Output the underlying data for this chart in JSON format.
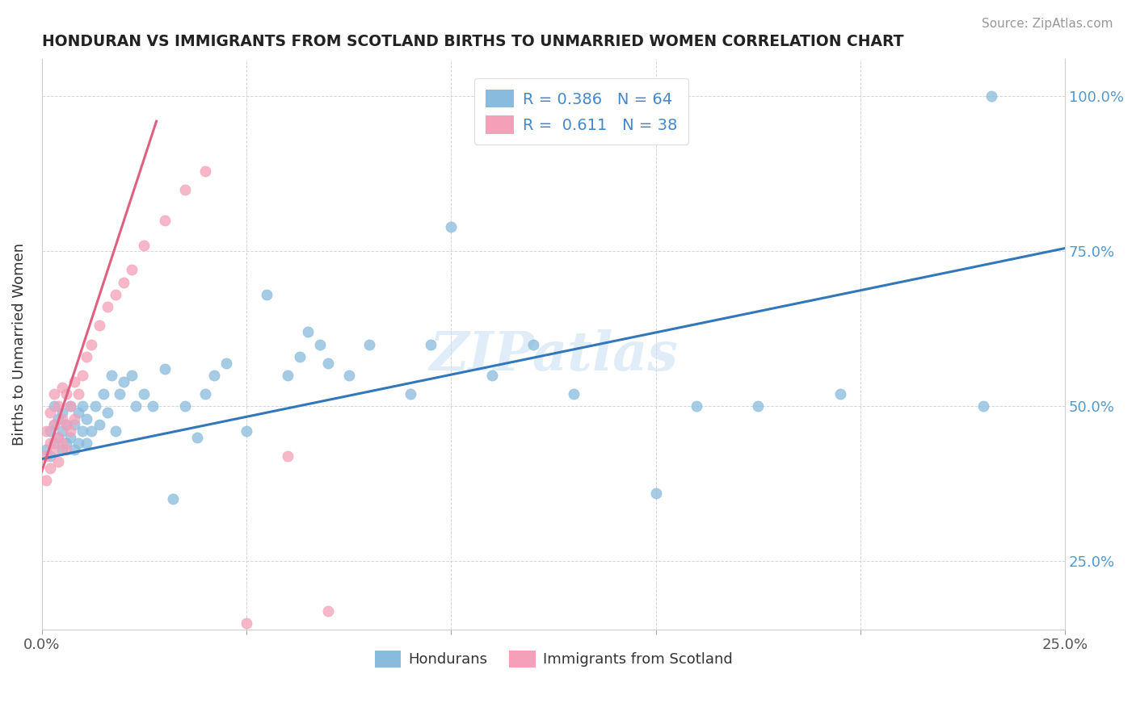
{
  "title": "HONDURAN VS IMMIGRANTS FROM SCOTLAND BIRTHS TO UNMARRIED WOMEN CORRELATION CHART",
  "source": "Source: ZipAtlas.com",
  "ylabel": "Births to Unmarried Women",
  "xlim": [
    0.0,
    0.25
  ],
  "ylim": [
    0.14,
    1.06
  ],
  "x_ticks": [
    0.0,
    0.05,
    0.1,
    0.15,
    0.2,
    0.25
  ],
  "x_tick_labels": [
    "0.0%",
    "",
    "",
    "",
    "",
    "25.0%"
  ],
  "y_ticks": [
    0.25,
    0.5,
    0.75,
    1.0
  ],
  "y_tick_labels": [
    "25.0%",
    "50.0%",
    "75.0%",
    "100.0%"
  ],
  "hondurans_R": 0.386,
  "hondurans_N": 64,
  "scotland_R": 0.611,
  "scotland_N": 38,
  "blue_color": "#88bbdd",
  "pink_color": "#f4a0b8",
  "blue_line_color": "#3377bb",
  "pink_line_color": "#e06080",
  "watermark": "ZIPatlas",
  "blue_line_x0": 0.0,
  "blue_line_y0": 0.415,
  "blue_line_x1": 0.25,
  "blue_line_y1": 0.755,
  "pink_line_x0": 0.0,
  "pink_line_y0": 0.395,
  "pink_line_x1": 0.028,
  "pink_line_y1": 0.96,
  "hondurans_x": [
    0.001,
    0.002,
    0.002,
    0.003,
    0.003,
    0.003,
    0.004,
    0.004,
    0.005,
    0.005,
    0.005,
    0.006,
    0.006,
    0.007,
    0.007,
    0.008,
    0.008,
    0.009,
    0.009,
    0.01,
    0.01,
    0.011,
    0.011,
    0.012,
    0.013,
    0.014,
    0.015,
    0.016,
    0.017,
    0.018,
    0.019,
    0.02,
    0.022,
    0.023,
    0.025,
    0.027,
    0.03,
    0.032,
    0.035,
    0.038,
    0.04,
    0.042,
    0.045,
    0.05,
    0.055,
    0.06,
    0.063,
    0.065,
    0.068,
    0.07,
    0.075,
    0.08,
    0.09,
    0.095,
    0.1,
    0.11,
    0.12,
    0.13,
    0.15,
    0.16,
    0.175,
    0.195,
    0.23,
    0.232
  ],
  "hondurans_y": [
    0.43,
    0.42,
    0.46,
    0.44,
    0.47,
    0.5,
    0.45,
    0.48,
    0.43,
    0.46,
    0.49,
    0.44,
    0.47,
    0.45,
    0.5,
    0.43,
    0.47,
    0.44,
    0.49,
    0.46,
    0.5,
    0.44,
    0.48,
    0.46,
    0.5,
    0.47,
    0.52,
    0.49,
    0.55,
    0.46,
    0.52,
    0.54,
    0.55,
    0.5,
    0.52,
    0.5,
    0.56,
    0.35,
    0.5,
    0.45,
    0.52,
    0.55,
    0.57,
    0.46,
    0.68,
    0.55,
    0.58,
    0.62,
    0.6,
    0.57,
    0.55,
    0.6,
    0.52,
    0.6,
    0.79,
    0.55,
    0.6,
    0.52,
    0.36,
    0.5,
    0.5,
    0.52,
    0.5,
    1.0
  ],
  "scotland_x": [
    0.001,
    0.001,
    0.001,
    0.002,
    0.002,
    0.002,
    0.003,
    0.003,
    0.003,
    0.004,
    0.004,
    0.004,
    0.005,
    0.005,
    0.005,
    0.006,
    0.006,
    0.006,
    0.007,
    0.007,
    0.008,
    0.008,
    0.009,
    0.01,
    0.011,
    0.012,
    0.014,
    0.016,
    0.018,
    0.02,
    0.022,
    0.025,
    0.03,
    0.035,
    0.04,
    0.05,
    0.06,
    0.07
  ],
  "scotland_y": [
    0.38,
    0.42,
    0.46,
    0.4,
    0.44,
    0.49,
    0.43,
    0.47,
    0.52,
    0.41,
    0.45,
    0.5,
    0.44,
    0.48,
    0.53,
    0.43,
    0.47,
    0.52,
    0.46,
    0.5,
    0.48,
    0.54,
    0.52,
    0.55,
    0.58,
    0.6,
    0.63,
    0.66,
    0.68,
    0.7,
    0.72,
    0.76,
    0.8,
    0.85,
    0.88,
    0.15,
    0.42,
    0.17
  ]
}
